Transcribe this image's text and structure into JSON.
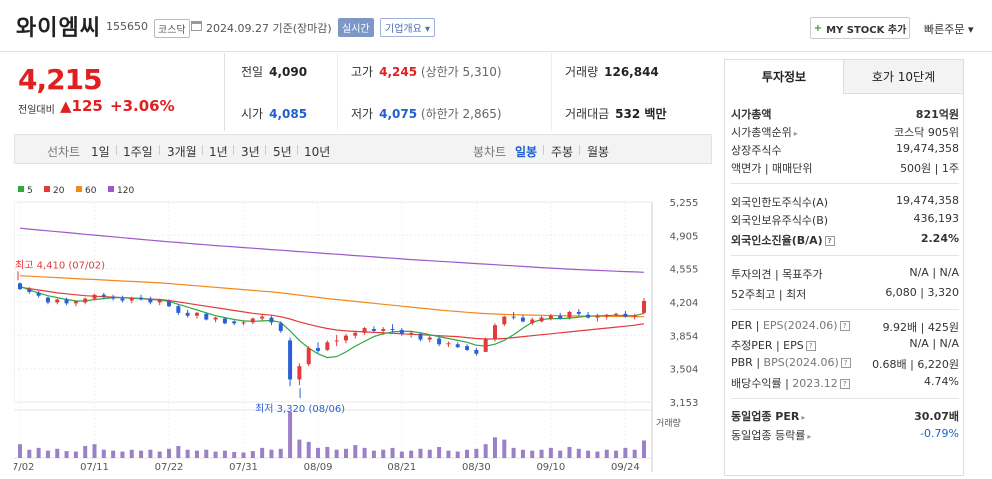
{
  "header": {
    "stock_name": "와이엠씨",
    "stock_code": "155650",
    "market": "코스닥",
    "date": "2024.09.27 기준(장마감)",
    "realtime_label": "실시간",
    "company_label": "기업개요 ▾",
    "mystock_label": "MY STOCK 추가",
    "quick_order_label": "빠른주문 ▾"
  },
  "price": {
    "current": "4,215",
    "prev_label": "전일대비",
    "change": "▲125",
    "change_pct": "+3.06%"
  },
  "stats": {
    "prev_close_label": "전일",
    "prev_close": "4,090",
    "high_label": "고가",
    "high": "4,245",
    "upper_limit": "(상한가 5,310)",
    "volume_label": "거래량",
    "volume": "126,844",
    "open_label": "시가",
    "open": "4,085",
    "low_label": "저가",
    "low": "4,075",
    "lower_limit": "(하한가 2,865)",
    "amount_label": "거래대금",
    "amount": "532 백만"
  },
  "period_bar": {
    "line_label": "선차트",
    "periods": [
      "1일",
      "1주일",
      "3개월",
      "1년",
      "3년",
      "5년",
      "10년"
    ],
    "candle_label": "봉차트",
    "candle_periods": [
      "일봉",
      "주봉",
      "월봉"
    ],
    "active_candle": "일봉"
  },
  "chart_data": {
    "type": "candlestick",
    "legend": [
      {
        "name": "5",
        "color": "#2ea843"
      },
      {
        "name": "20",
        "color": "#e43a3a"
      },
      {
        "name": "60",
        "color": "#f08a1c"
      },
      {
        "name": "120",
        "color": "#9c59c9"
      }
    ],
    "y_ticks": [
      "5,255",
      "4,905",
      "4,555",
      "4,204",
      "3,854",
      "3,504",
      "3,153"
    ],
    "y_range": [
      3153,
      5255
    ],
    "x_ticks": [
      "07/02",
      "07/11",
      "07/22",
      "07/31",
      "08/09",
      "08/21",
      "08/30",
      "09/10",
      "09/24"
    ],
    "high_annotation": "최고 4,410 (07/02)",
    "low_annotation": "최저 3,320 (08/06)",
    "volume_label": "거래량",
    "candles": [
      [
        4400,
        4410,
        4330,
        4340
      ],
      [
        4340,
        4360,
        4290,
        4310
      ],
      [
        4300,
        4320,
        4250,
        4270
      ],
      [
        4250,
        4260,
        4180,
        4200
      ],
      [
        4200,
        4240,
        4180,
        4230
      ],
      [
        4230,
        4250,
        4170,
        4190
      ],
      [
        4190,
        4220,
        4160,
        4210
      ],
      [
        4200,
        4250,
        4180,
        4240
      ],
      [
        4240,
        4290,
        4220,
        4280
      ],
      [
        4280,
        4300,
        4240,
        4260
      ],
      [
        4260,
        4280,
        4220,
        4240
      ],
      [
        4240,
        4270,
        4200,
        4220
      ],
      [
        4220,
        4260,
        4190,
        4250
      ],
      [
        4250,
        4280,
        4220,
        4230
      ],
      [
        4240,
        4260,
        4180,
        4200
      ],
      [
        4200,
        4240,
        4170,
        4230
      ],
      [
        4210,
        4230,
        4150,
        4160
      ],
      [
        4160,
        4180,
        4070,
        4090
      ],
      [
        4090,
        4120,
        4040,
        4060
      ],
      [
        4060,
        4100,
        4030,
        4090
      ],
      [
        4080,
        4090,
        4010,
        4020
      ],
      [
        4020,
        4050,
        3990,
        4040
      ],
      [
        4030,
        4040,
        3970,
        3980
      ],
      [
        4000,
        4010,
        3960,
        3980
      ],
      [
        3980,
        4010,
        3960,
        3990
      ],
      [
        3990,
        4040,
        3970,
        4030
      ],
      [
        4030,
        4080,
        4010,
        4050
      ],
      [
        4040,
        4060,
        3960,
        3990
      ],
      [
        3980,
        4000,
        3880,
        3900
      ],
      [
        3800,
        3830,
        3320,
        3390
      ],
      [
        3390,
        3560,
        3330,
        3530
      ],
      [
        3550,
        3740,
        3530,
        3720
      ],
      [
        3720,
        3780,
        3670,
        3690
      ],
      [
        3700,
        3800,
        3690,
        3780
      ],
      [
        3790,
        3860,
        3740,
        3800
      ],
      [
        3800,
        3870,
        3770,
        3850
      ],
      [
        3850,
        3900,
        3820,
        3880
      ],
      [
        3880,
        3940,
        3860,
        3930
      ],
      [
        3920,
        3950,
        3890,
        3900
      ],
      [
        3900,
        3940,
        3860,
        3920
      ],
      [
        3920,
        3970,
        3880,
        3910
      ],
      [
        3910,
        3930,
        3850,
        3870
      ],
      [
        3870,
        3900,
        3830,
        3880
      ],
      [
        3870,
        3880,
        3790,
        3810
      ],
      [
        3810,
        3850,
        3780,
        3830
      ],
      [
        3820,
        3840,
        3740,
        3760
      ],
      [
        3760,
        3790,
        3730,
        3770
      ],
      [
        3760,
        3780,
        3720,
        3730
      ],
      [
        3740,
        3760,
        3690,
        3700
      ],
      [
        3700,
        3720,
        3640,
        3660
      ],
      [
        3680,
        3830,
        3680,
        3820
      ],
      [
        3810,
        3980,
        3790,
        3960
      ],
      [
        3970,
        4060,
        3950,
        4050
      ],
      [
        4050,
        4100,
        4020,
        4040
      ],
      [
        4040,
        4070,
        3990,
        4000
      ],
      [
        3980,
        4040,
        3960,
        4020
      ],
      [
        4000,
        4060,
        3990,
        4040
      ],
      [
        4030,
        4080,
        4010,
        4060
      ],
      [
        4060,
        4090,
        4020,
        4030
      ],
      [
        4040,
        4110,
        4020,
        4100
      ],
      [
        4100,
        4130,
        4060,
        4080
      ],
      [
        4070,
        4100,
        4030,
        4040
      ],
      [
        4040,
        4080,
        4000,
        4060
      ],
      [
        4050,
        4080,
        4020,
        4070
      ],
      [
        4070,
        4090,
        4050,
        4080
      ],
      [
        4080,
        4110,
        4040,
        4050
      ],
      [
        4050,
        4080,
        4020,
        4060
      ],
      [
        4090,
        4245,
        4075,
        4215
      ]
    ],
    "ma5": [
      4370,
      4330,
      4300,
      4270,
      4250,
      4230,
      4215,
      4215,
      4230,
      4240,
      4250,
      4250,
      4245,
      4240,
      4230,
      4225,
      4210,
      4180,
      4150,
      4120,
      4090,
      4060,
      4040,
      4020,
      4005,
      4000,
      4005,
      4010,
      3990,
      3900,
      3800,
      3720,
      3660,
      3620,
      3630,
      3680,
      3740,
      3790,
      3840,
      3870,
      3890,
      3895,
      3895,
      3880,
      3860,
      3840,
      3820,
      3800,
      3780,
      3750,
      3740,
      3760,
      3800,
      3860,
      3930,
      3990,
      4020,
      4030,
      4030,
      4035,
      4045,
      4055,
      4060,
      4060,
      4065,
      4060,
      4060,
      4085
    ],
    "ma20": [
      4360,
      4345,
      4330,
      4315,
      4300,
      4290,
      4280,
      4270,
      4265,
      4260,
      4255,
      4250,
      4245,
      4240,
      4235,
      4230,
      4220,
      4205,
      4190,
      4175,
      4160,
      4145,
      4130,
      4115,
      4100,
      4085,
      4075,
      4065,
      4050,
      4025,
      3995,
      3970,
      3945,
      3925,
      3910,
      3900,
      3895,
      3890,
      3885,
      3880,
      3875,
      3870,
      3865,
      3860,
      3855,
      3850,
      3845,
      3840,
      3830,
      3820,
      3815,
      3815,
      3820,
      3830,
      3840,
      3850,
      3860,
      3870,
      3880,
      3890,
      3900,
      3910,
      3920,
      3930,
      3940,
      3950,
      3960,
      3975
    ],
    "ma60": [
      4480,
      4475,
      4470,
      4465,
      4460,
      4455,
      4450,
      4445,
      4440,
      4435,
      4430,
      4425,
      4420,
      4415,
      4410,
      4405,
      4398,
      4390,
      4382,
      4374,
      4366,
      4358,
      4350,
      4342,
      4334,
      4326,
      4318,
      4310,
      4300,
      4288,
      4276,
      4264,
      4252,
      4240,
      4230,
      4220,
      4210,
      4200,
      4190,
      4180,
      4170,
      4160,
      4150,
      4140,
      4130,
      4120,
      4112,
      4104,
      4096,
      4088,
      4082,
      4078,
      4074,
      4070,
      4068,
      4066,
      4064,
      4062,
      4060,
      4058,
      4057,
      4056,
      4055,
      4054,
      4053,
      4052,
      4051,
      4050
    ],
    "ma120": [
      4980,
      4970,
      4961,
      4952,
      4943,
      4934,
      4925,
      4916,
      4907,
      4898,
      4889,
      4880,
      4871,
      4862,
      4853,
      4845,
      4837,
      4829,
      4821,
      4813,
      4805,
      4797,
      4790,
      4783,
      4776,
      4769,
      4762,
      4755,
      4748,
      4741,
      4734,
      4727,
      4720,
      4713,
      4706,
      4699,
      4692,
      4685,
      4678,
      4671,
      4664,
      4657,
      4650,
      4644,
      4638,
      4632,
      4626,
      4620,
      4614,
      4608,
      4602,
      4596,
      4590,
      4584,
      4578,
      4572,
      4566,
      4560,
      4555,
      4550,
      4545,
      4540,
      4536,
      4532,
      4528,
      4524,
      4520,
      4516
    ],
    "volume": [
      30,
      18,
      22,
      16,
      20,
      15,
      14,
      26,
      30,
      18,
      16,
      14,
      18,
      16,
      18,
      14,
      20,
      26,
      18,
      16,
      18,
      14,
      16,
      13,
      12,
      15,
      22,
      18,
      20,
      100,
      40,
      35,
      22,
      24,
      18,
      20,
      28,
      22,
      16,
      18,
      22,
      14,
      16,
      20,
      18,
      24,
      16,
      14,
      18,
      20,
      30,
      45,
      40,
      22,
      18,
      16,
      18,
      22,
      16,
      24,
      20,
      16,
      14,
      18,
      16,
      22,
      18,
      38
    ]
  },
  "side": {
    "tab_invest": "투자정보",
    "tab_hoga": "호가 10단계",
    "market_cap_label": "시가총액",
    "market_cap": "821억원",
    "market_cap_rank_label": "시가총액순위",
    "market_cap_rank": "코스닥 905위",
    "shares_label": "상장주식수",
    "shares": "19,474,358",
    "par_label": "액면가 | 매매단위",
    "par": "500원 | 1주",
    "foreign_limit_label": "외국인한도주식수(A)",
    "foreign_limit": "19,474,358",
    "foreign_hold_label": "외국인보유주식수(B)",
    "foreign_hold": "436,193",
    "foreign_ratio_label": "외국인소진율(B/A)",
    "foreign_ratio": "2.24%",
    "opinion_label": "투자의견 | 목표주가",
    "opinion": "N/A | N/A",
    "week52_label": "52주최고 | 최저",
    "week52": "6,080 | 3,320",
    "per_label": "PER",
    "eps_label": "EPS(2024.06)",
    "per": "9.92배 | 425원",
    "est_per_label": "추정PER",
    "est_eps_label": "EPS",
    "est_per": "N/A | N/A",
    "pbr_label": "PBR",
    "bps_label": "BPS(2024.06)",
    "pbr": "0.68배 | 6,220원",
    "div_label": "배당수익률",
    "div_year": "2023.12",
    "div": "4.74%",
    "ind_per_label": "동일업종 PER",
    "ind_per": "30.07배",
    "ind_change_label": "동일업종 등락률",
    "ind_change": "-0.79%"
  }
}
